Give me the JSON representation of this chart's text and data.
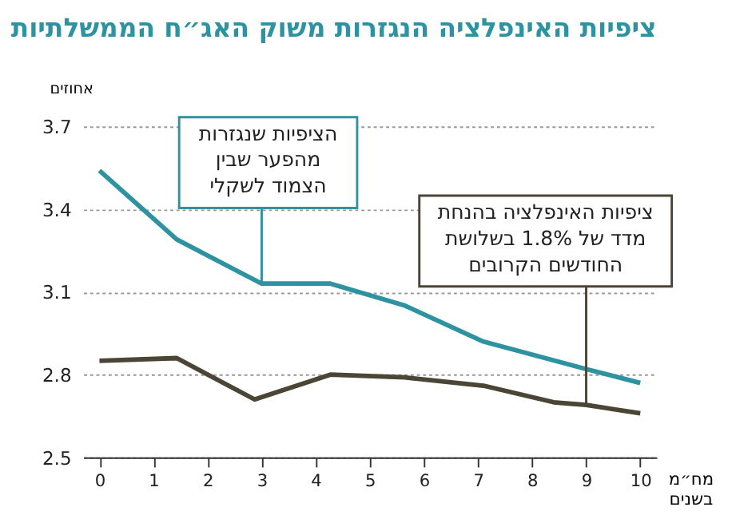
{
  "chart_data": {
    "type": "line",
    "title": "ציפיות האינפלציה הנגזרות משוק האג״ח הממשלתיות",
    "ylabel": "אחוזים",
    "xlabel": "מח״מ בשנים",
    "xlim": [
      -0.3,
      10.3
    ],
    "xticks": [
      0,
      1,
      2,
      3,
      4,
      5,
      6,
      7,
      8,
      9,
      10
    ],
    "ylim": [
      2.5,
      3.7
    ],
    "yticks": [
      2.5,
      2.8,
      3.1,
      3.4,
      3.7
    ],
    "grid": "y",
    "marker": "none",
    "line_style": "solid",
    "series": [
      {
        "color": "#2e93a0",
        "x": [
          0,
          1.43,
          3.0,
          4.27,
          5.65,
          7.1,
          9.0,
          10
        ],
        "values": [
          3.54,
          3.29,
          3.13,
          3.13,
          3.05,
          2.92,
          2.82,
          2.77
        ]
      },
      {
        "color": "#4a4535",
        "x": [
          0,
          1.43,
          2.87,
          4.27,
          5.65,
          7.1,
          8.4,
          9.0,
          10
        ],
        "values": [
          2.85,
          2.86,
          2.71,
          2.8,
          2.79,
          2.76,
          2.7,
          2.69,
          2.66
        ]
      }
    ],
    "annotations": [
      {
        "text": "הציפיות שנגזרות מהפער שבין הצמוד לשקלי",
        "x": 3.0,
        "y": 3.13
      },
      {
        "text": "ציפיות האינפלציה בהנחת מדד של 1.8% בשלושת החודשים הקרובים",
        "x": 9.0,
        "y": 2.69
      }
    ]
  }
}
